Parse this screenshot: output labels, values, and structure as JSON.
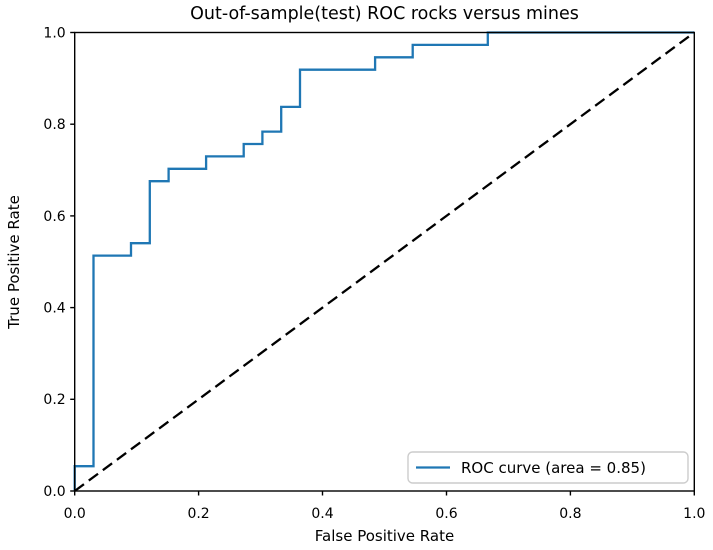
{
  "figure": {
    "background": "#ffffff"
  },
  "chart_data": {
    "type": "line",
    "subtype": "roc-step-curve",
    "title": "Out-of-sample(test) ROC rocks versus mines",
    "xlabel": "False Positive Rate",
    "ylabel": "True Positive Rate",
    "xlim": [
      0.0,
      1.0
    ],
    "ylim": [
      0.0,
      1.0
    ],
    "x_ticks": [
      "0.0",
      "0.2",
      "0.4",
      "0.6",
      "0.8",
      "1.0"
    ],
    "y_ticks": [
      "0.0",
      "0.2",
      "0.4",
      "0.6",
      "0.8",
      "1.0"
    ],
    "grid": false,
    "legend": {
      "position": "lower right",
      "entries": [
        {
          "label": "ROC curve (area = 0.85)",
          "color": "#1f77b4",
          "linestyle": "solid"
        }
      ]
    },
    "series": [
      {
        "name": "ROC curve",
        "color": "#1f77b4",
        "linestyle": "solid",
        "auc": 0.85,
        "points": [
          [
            0.0,
            0.0
          ],
          [
            0.0,
            0.0541
          ],
          [
            0.0303,
            0.0541
          ],
          [
            0.0303,
            0.5135
          ],
          [
            0.0909,
            0.5135
          ],
          [
            0.0909,
            0.5405
          ],
          [
            0.1212,
            0.5405
          ],
          [
            0.1212,
            0.6757
          ],
          [
            0.1515,
            0.6757
          ],
          [
            0.1515,
            0.7027
          ],
          [
            0.2121,
            0.7027
          ],
          [
            0.2121,
            0.7297
          ],
          [
            0.2727,
            0.7297
          ],
          [
            0.2727,
            0.7568
          ],
          [
            0.303,
            0.7568
          ],
          [
            0.303,
            0.7838
          ],
          [
            0.3333,
            0.7838
          ],
          [
            0.3333,
            0.8378
          ],
          [
            0.3636,
            0.8378
          ],
          [
            0.3636,
            0.9189
          ],
          [
            0.4848,
            0.9189
          ],
          [
            0.4848,
            0.9459
          ],
          [
            0.5455,
            0.9459
          ],
          [
            0.5455,
            0.973
          ],
          [
            0.6667,
            0.973
          ],
          [
            0.6667,
            1.0
          ],
          [
            1.0,
            1.0
          ]
        ]
      },
      {
        "name": "chance diagonal",
        "color": "#000000",
        "linestyle": "dashed",
        "points": [
          [
            0.0,
            0.0
          ],
          [
            1.0,
            1.0
          ]
        ]
      }
    ]
  },
  "colors": {
    "curve": "#1f77b4",
    "diagonal": "#000000",
    "spine": "#000000",
    "tick": "#000000",
    "legend_border": "#cccccc",
    "legend_background": "#ffffff",
    "text": "#000000"
  }
}
